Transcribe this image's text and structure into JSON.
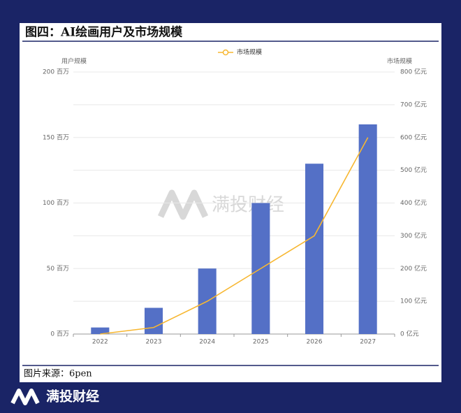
{
  "title": "图四：AI绘画用户及市场规模",
  "source": "图片来源：6pen",
  "watermark": "满投财经",
  "brand": "满投财经",
  "chart_data": {
    "type": "bar",
    "y_label": "用户规模",
    "y2_label": "市场规模",
    "categories": [
      "2022",
      "2023",
      "2024",
      "2025",
      "2026",
      "2027"
    ],
    "series": [
      {
        "type": "bar",
        "color": "#5470c6",
        "values": [
          5,
          20,
          50,
          100,
          130,
          160
        ]
      },
      {
        "type": "line",
        "name": "市场规模",
        "axis": "y2",
        "color": "#f7b731",
        "values": [
          0,
          20,
          100,
          200,
          300,
          600
        ]
      }
    ],
    "ylim": [
      0,
      200
    ],
    "yticks": [
      {
        "value": 0,
        "label": "0 百万"
      },
      {
        "value": 50,
        "label": "50 百万"
      },
      {
        "value": 100,
        "label": "100 百万"
      },
      {
        "value": 150,
        "label": "150 百万"
      },
      {
        "value": 200,
        "label": "200 百万"
      }
    ],
    "y2lim": [
      0,
      800
    ],
    "y2ticks": [
      {
        "value": 0,
        "label": "0 亿元"
      },
      {
        "value": 100,
        "label": "100 亿元"
      },
      {
        "value": 200,
        "label": "200 亿元"
      },
      {
        "value": 300,
        "label": "300 亿元"
      },
      {
        "value": 400,
        "label": "400 亿元"
      },
      {
        "value": 500,
        "label": "500 亿元"
      },
      {
        "value": 600,
        "label": "600 亿元"
      },
      {
        "value": 700,
        "label": "700 亿元"
      },
      {
        "value": 800,
        "label": "800 亿元"
      }
    ],
    "grid": true,
    "legend": "top"
  }
}
